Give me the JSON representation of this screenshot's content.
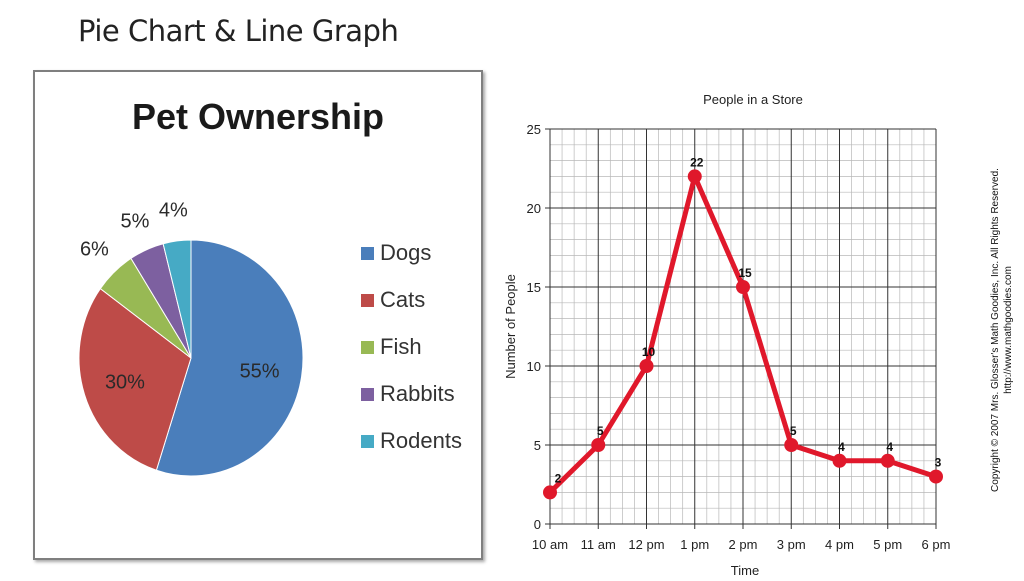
{
  "slide": {
    "title": "Pie Chart & Line Graph"
  },
  "copyright": {
    "line1": "Copyright © 2007 Mrs. Glosser's Math Goodies, Inc. All Rights Reserved.",
    "line2": "http://www.mathgoodies.com"
  },
  "chart_data": [
    {
      "type": "pie",
      "title": "Pet Ownership",
      "categories": [
        "Dogs",
        "Cats",
        "Fish",
        "Rabbits",
        "Rodents"
      ],
      "values": [
        55,
        30,
        6,
        5,
        4
      ],
      "labels": [
        "55%",
        "30%",
        "6%",
        "5%",
        "4%"
      ],
      "colors": [
        "#4a7ebb",
        "#be4b48",
        "#98b954",
        "#7d60a0",
        "#46aac5"
      ],
      "legend_position": "right"
    },
    {
      "type": "line",
      "title": "People in a Store",
      "xlabel": "Time",
      "ylabel": "Number of People",
      "categories": [
        "10 am",
        "11 am",
        "12 pm",
        "1 pm",
        "2 pm",
        "3 pm",
        "4 pm",
        "5 pm",
        "6 pm"
      ],
      "values": [
        2,
        5,
        10,
        22,
        15,
        5,
        4,
        4,
        3
      ],
      "ylim": [
        0,
        25
      ],
      "yticks": [
        0,
        5,
        10,
        15,
        20,
        25
      ],
      "grid": true,
      "color": "#e0182b"
    }
  ]
}
